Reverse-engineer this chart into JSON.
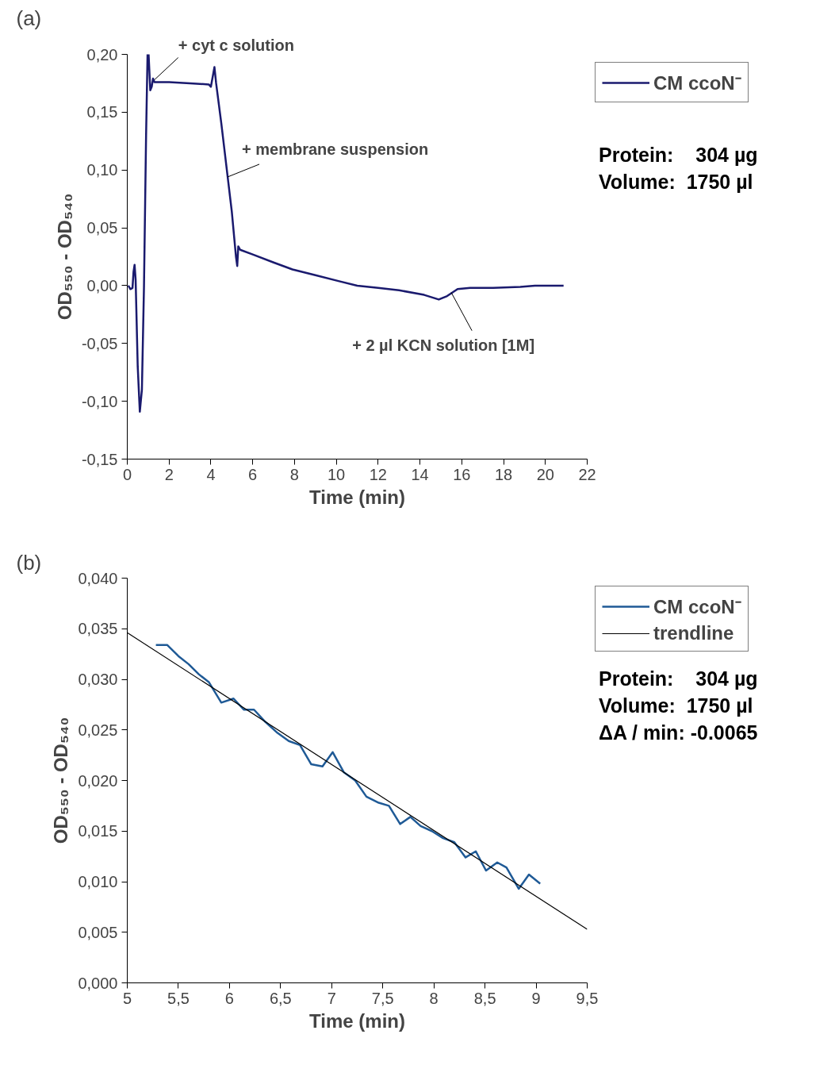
{
  "chart_data": [
    {
      "type": "line",
      "title": "(a)",
      "xlabel": "Time (min)",
      "ylabel": "OD₅₅₀ - OD₅₄₀",
      "legend": "right",
      "grid": false,
      "marker": "none",
      "line_style": "solid",
      "xlim": [
        0,
        22
      ],
      "xticks": [
        0,
        2,
        4,
        6,
        8,
        10,
        12,
        14,
        16,
        18,
        20,
        22
      ],
      "ylim": [
        -0.15,
        0.2
      ],
      "yticks": [
        {
          "value": -0.15,
          "label": "-0,15"
        },
        {
          "value": -0.1,
          "label": "-0,10"
        },
        {
          "value": -0.05,
          "label": "-0,05"
        },
        {
          "value": 0,
          "label": "0,00"
        },
        {
          "value": 0.05,
          "label": "0,05"
        },
        {
          "value": 0.1,
          "label": "0,10"
        },
        {
          "value": 0.15,
          "label": "0,15"
        },
        {
          "value": 0.2,
          "label": "0,20"
        }
      ],
      "series": [
        {
          "name": "CM ccoN⁻",
          "color": "#1a1a6e",
          "x": [
            0.05,
            0.15,
            0.25,
            0.3,
            0.35,
            0.4,
            0.5,
            0.6,
            0.7,
            0.8,
            0.9,
            0.97,
            1.02,
            1.1,
            1.17,
            1.23,
            1.3,
            2.0,
            3.0,
            3.9,
            4.0,
            4.1,
            4.17,
            4.25,
            4.5,
            5.0,
            5.2,
            5.26,
            5.31,
            5.4,
            6.0,
            7.0,
            7.9,
            9.0,
            10.1,
            11.0,
            12.0,
            13.0,
            14.2,
            14.9,
            15.3,
            15.8,
            16.4,
            17.5,
            18.8,
            19.5,
            20.2,
            20.87
          ],
          "values": [
            0.0,
            -0.003,
            -0.002,
            0.012,
            0.018,
            0.005,
            -0.07,
            -0.109,
            -0.09,
            0.0,
            0.13,
            0.2,
            0.2,
            0.169,
            0.172,
            0.179,
            0.176,
            0.176,
            0.175,
            0.174,
            0.172,
            0.182,
            0.189,
            0.175,
            0.14,
            0.064,
            0.025,
            0.017,
            0.034,
            0.031,
            0.027,
            0.02,
            0.014,
            0.009,
            0.004,
            0.0,
            -0.002,
            -0.004,
            -0.008,
            -0.012,
            -0.009,
            -0.003,
            -0.002,
            -0.002,
            -0.001,
            0.0,
            0.0,
            0.0
          ]
        }
      ],
      "annotations": [
        {
          "text": "+ cyt c solution",
          "x": 1.3,
          "y": 0.178
        },
        {
          "text": "+ membrane suspension",
          "x": 4.8,
          "y": 0.094
        },
        {
          "text": "+ 2 µl KCN solution [1M]",
          "x": 15.5,
          "y": -0.006
        },
        "Protein:    304 µg",
        "Volume:  1750 µl"
      ]
    },
    {
      "type": "line",
      "title": "(b)",
      "xlabel": "Time (min)",
      "ylabel": "OD₅₅₀ - OD₅₄₀",
      "legend": "right",
      "grid": false,
      "marker": "none",
      "line_style": "solid",
      "xlim": [
        5,
        9.5
      ],
      "xticks": [
        5,
        {
          "value": 5.5,
          "label": "5,5"
        },
        6,
        {
          "value": 6.5,
          "label": "6,5"
        },
        7,
        {
          "value": 7.5,
          "label": "7,5"
        },
        8,
        {
          "value": 8.5,
          "label": "8,5"
        },
        9,
        {
          "value": 9.5,
          "label": "9,5"
        }
      ],
      "ylim": [
        0,
        0.04
      ],
      "yticks": [
        {
          "value": 0,
          "label": "0,000"
        },
        {
          "value": 0.005,
          "label": "0,005"
        },
        {
          "value": 0.01,
          "label": "0,010"
        },
        {
          "value": 0.015,
          "label": "0,015"
        },
        {
          "value": 0.02,
          "label": "0,020"
        },
        {
          "value": 0.025,
          "label": "0,025"
        },
        {
          "value": 0.03,
          "label": "0,030"
        },
        {
          "value": 0.035,
          "label": "0,035"
        },
        {
          "value": 0.04,
          "label": "0,040"
        }
      ],
      "series": [
        {
          "name": "CM ccoN⁻",
          "color": "#1f5a96",
          "x": [
            5.28,
            5.39,
            5.5,
            5.6,
            5.7,
            5.8,
            5.92,
            6.04,
            6.14,
            6.24,
            6.35,
            6.47,
            6.58,
            6.69,
            6.8,
            6.91,
            7.01,
            7.12,
            7.23,
            7.34,
            7.46,
            7.56,
            7.67,
            7.77,
            7.87,
            7.98,
            8.09,
            8.2,
            8.31,
            8.41,
            8.51,
            8.62,
            8.71,
            8.83,
            8.93,
            9.04
          ],
          "values": [
            0.0334,
            0.0334,
            0.0323,
            0.0315,
            0.0305,
            0.0297,
            0.0277,
            0.0281,
            0.027,
            0.027,
            0.0258,
            0.0247,
            0.0239,
            0.0235,
            0.0216,
            0.0214,
            0.0228,
            0.0208,
            0.02,
            0.0184,
            0.0178,
            0.0175,
            0.0157,
            0.0164,
            0.0155,
            0.015,
            0.0143,
            0.0139,
            0.0124,
            0.013,
            0.0111,
            0.0119,
            0.0114,
            0.0093,
            0.0107,
            0.0098
          ]
        },
        {
          "name": "trendline",
          "type": "line",
          "color": "#000000",
          "x": [
            5,
            9.5
          ],
          "values": [
            0.0346,
            0.0053
          ]
        }
      ],
      "annotations": [
        "Protein:    304 µg",
        "Volume:  1750 µl",
        "ΔA / min: -0.0065"
      ]
    }
  ]
}
